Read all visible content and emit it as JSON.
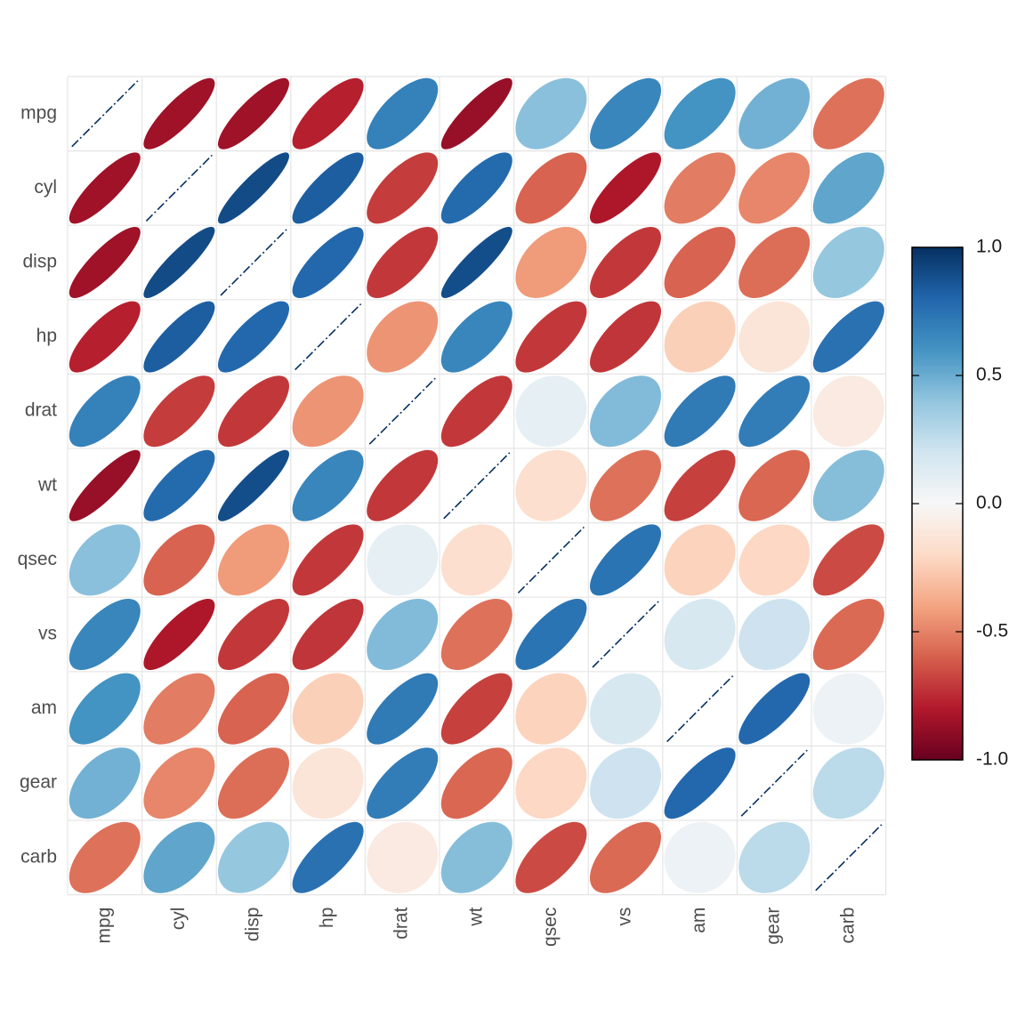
{
  "chart_data": {
    "type": "heatmap",
    "glyph": "ellipse",
    "variables": [
      "mpg",
      "cyl",
      "disp",
      "hp",
      "drat",
      "wt",
      "qsec",
      "vs",
      "am",
      "gear",
      "carb"
    ],
    "matrix": [
      [
        1.0,
        -0.85,
        -0.85,
        -0.78,
        0.68,
        -0.87,
        0.42,
        0.66,
        0.6,
        0.48,
        -0.55
      ],
      [
        -0.85,
        1.0,
        0.9,
        0.83,
        -0.7,
        0.78,
        -0.59,
        -0.81,
        -0.52,
        -0.49,
        0.53
      ],
      [
        -0.85,
        0.9,
        1.0,
        0.79,
        -0.71,
        0.89,
        -0.43,
        -0.71,
        -0.59,
        -0.56,
        0.39
      ],
      [
        -0.78,
        0.83,
        0.79,
        1.0,
        -0.45,
        0.66,
        -0.71,
        -0.72,
        -0.24,
        -0.13,
        0.75
      ],
      [
        0.68,
        -0.7,
        -0.71,
        -0.45,
        1.0,
        -0.71,
        0.09,
        0.44,
        0.71,
        0.7,
        -0.09
      ],
      [
        -0.87,
        0.78,
        0.89,
        0.66,
        -0.71,
        1.0,
        -0.17,
        -0.55,
        -0.69,
        -0.58,
        0.43
      ],
      [
        0.42,
        -0.59,
        -0.43,
        -0.71,
        0.09,
        -0.17,
        1.0,
        0.74,
        -0.23,
        -0.21,
        -0.66
      ],
      [
        0.66,
        -0.81,
        -0.71,
        -0.72,
        0.44,
        -0.55,
        0.74,
        1.0,
        0.17,
        0.21,
        -0.57
      ],
      [
        0.6,
        -0.52,
        -0.59,
        -0.24,
        0.71,
        -0.69,
        -0.23,
        0.17,
        1.0,
        0.79,
        0.06
      ],
      [
        0.48,
        -0.49,
        -0.56,
        -0.13,
        0.7,
        -0.58,
        -0.21,
        0.21,
        0.79,
        1.0,
        0.27
      ],
      [
        -0.55,
        0.53,
        0.39,
        0.75,
        -0.09,
        0.43,
        -0.66,
        -0.57,
        0.06,
        0.27,
        1.0
      ]
    ],
    "colorbar": {
      "range": [
        -1,
        1
      ],
      "ticks": [
        "1.0",
        "0.5",
        "0.0",
        "-0.5",
        "-1.0"
      ],
      "tick_values": [
        1,
        0.5,
        0,
        -0.5,
        -1
      ]
    },
    "colors": {
      "negative_strong": "#67001F",
      "negative": "#B2182B",
      "negative_mid": "#D6604D",
      "negative_light": "#F4A582",
      "negative_pale": "#FDDBC7",
      "neutral": "#F7F7F7",
      "positive_pale": "#D1E5F0",
      "positive_light": "#92C5DE",
      "positive_mid": "#4393C3",
      "positive": "#2166AC",
      "positive_strong": "#053061",
      "grid": "#e5e5e5"
    }
  }
}
